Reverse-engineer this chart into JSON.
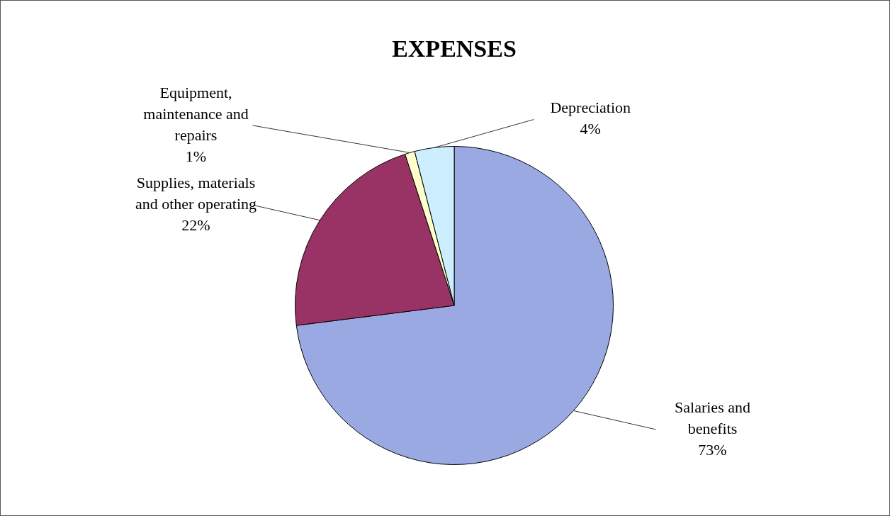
{
  "chart_data": {
    "type": "pie",
    "title": "EXPENSES",
    "categories": [
      "Salaries and benefits",
      "Supplies, materials and other operating",
      "Equipment, maintenance and repairs",
      "Depreciation"
    ],
    "values": [
      73,
      22,
      1,
      4
    ],
    "value_labels": [
      "73%",
      "22%",
      "1%",
      "4%"
    ],
    "colors": [
      "#9aa9e2",
      "#993366",
      "#ffffcc",
      "#cdeeff"
    ],
    "legend": false
  }
}
